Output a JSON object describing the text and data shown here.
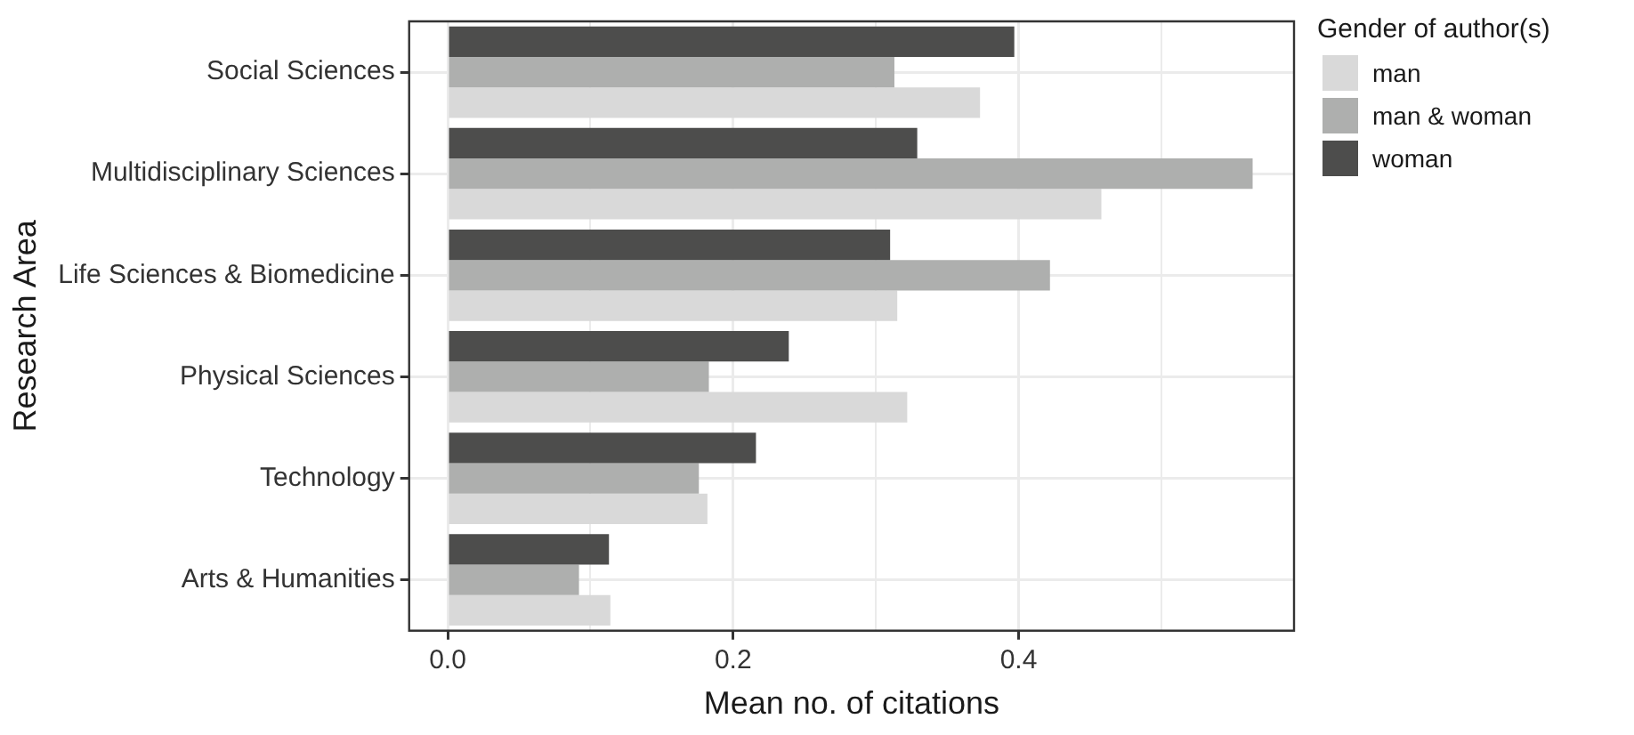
{
  "chart_data": {
    "type": "bar",
    "orientation": "horizontal",
    "xlabel": "Mean no. of citations",
    "ylabel": "Research Area",
    "legend_title": "Gender of author(s)",
    "legend": "right",
    "grid": true,
    "categories": [
      "Social Sciences",
      "Multidisciplinary Sciences",
      "Life Sciences & Biomedicine",
      "Physical Sciences",
      "Technology",
      "Arts & Humanities"
    ],
    "xlim": [
      -0.027,
      0.593
    ],
    "xticks": [
      {
        "value": 0,
        "label": "0.0"
      },
      {
        "value": 0.1,
        "label": null
      },
      {
        "value": 0.2,
        "label": "0.2"
      },
      {
        "value": 0.3,
        "label": null
      },
      {
        "value": 0.4,
        "label": "0.4"
      },
      {
        "value": 0.5,
        "label": null
      }
    ],
    "series": [
      {
        "name": "man",
        "color": "#d9d9d9",
        "values": [
          0.373,
          0.458,
          0.315,
          0.322,
          0.182,
          0.114
        ]
      },
      {
        "name": "man & woman",
        "color": "#aeafae",
        "values": [
          0.313,
          0.564,
          0.422,
          0.183,
          0.176,
          0.092
        ]
      },
      {
        "name": "woman",
        "color": "#4d4d4c",
        "values": [
          0.397,
          0.329,
          0.31,
          0.239,
          0.216,
          0.113
        ]
      }
    ]
  }
}
